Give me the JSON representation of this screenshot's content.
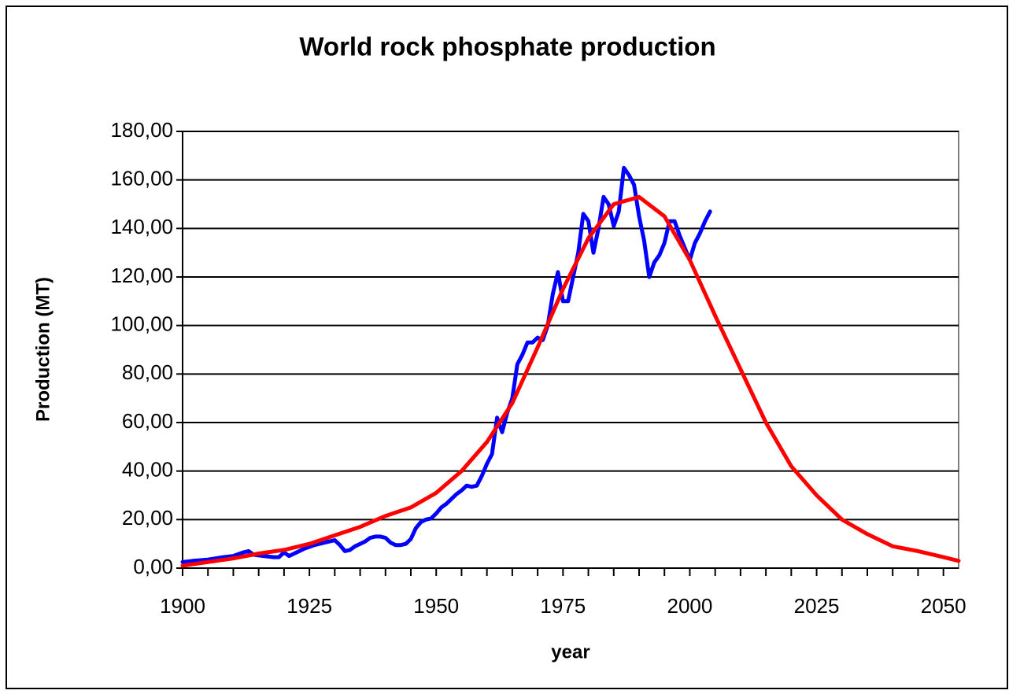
{
  "chart_data": {
    "type": "line",
    "title": "World rock phosphate production",
    "x_label": "year",
    "y_label": "Production (MT)",
    "xlim": [
      1900,
      2053
    ],
    "xticks": [
      1900,
      1925,
      1950,
      1975,
      2000,
      2025,
      2050
    ],
    "xminorticks": [
      1905,
      1910,
      1915,
      1920,
      1930,
      1935,
      1940,
      1945,
      1955,
      1960,
      1965,
      1970,
      1980,
      1985,
      1990,
      1995,
      2005,
      2010,
      2015,
      2020,
      2030,
      2035,
      2040,
      2045
    ],
    "ylim": [
      0,
      180
    ],
    "yticks": [
      {
        "value": 0,
        "label": "0,00"
      },
      {
        "value": 20,
        "label": "20,00"
      },
      {
        "value": 40,
        "label": "40,00"
      },
      {
        "value": 60,
        "label": "60,00"
      },
      {
        "value": 80,
        "label": "80,00"
      },
      {
        "value": 100,
        "label": "100,00"
      },
      {
        "value": 120,
        "label": "120,00"
      },
      {
        "value": 140,
        "label": "140,00"
      },
      {
        "value": 160,
        "label": "160,00"
      },
      {
        "value": 180,
        "label": "180,00"
      }
    ],
    "grid": true,
    "series": [
      {
        "color": "#0000ff",
        "x": [
          1900,
          1902,
          1905,
          1908,
          1910,
          1912,
          1913,
          1914,
          1916,
          1918,
          1919,
          1920,
          1921,
          1922,
          1924,
          1926,
          1928,
          1929,
          1930,
          1931,
          1932,
          1933,
          1934,
          1935,
          1936,
          1937,
          1938,
          1939,
          1940,
          1941,
          1942,
          1943,
          1944,
          1945,
          1946,
          1947,
          1948,
          1949,
          1950,
          1951,
          1952,
          1953,
          1954,
          1955,
          1956,
          1957,
          1958,
          1959,
          1960,
          1961,
          1962,
          1963,
          1964,
          1965,
          1966,
          1967,
          1968,
          1969,
          1970,
          1971,
          1972,
          1973,
          1974,
          1975,
          1976,
          1977,
          1978,
          1979,
          1980,
          1981,
          1982,
          1983,
          1984,
          1985,
          1986,
          1987,
          1988,
          1989,
          1990,
          1991,
          1992,
          1993,
          1994,
          1995,
          1996,
          1997,
          1998,
          1999,
          2000,
          2001,
          2002,
          2003,
          2004
        ],
        "values": [
          2.5,
          3,
          3.5,
          4.5,
          5,
          6.5,
          7,
          5.5,
          5,
          4.5,
          4.5,
          6.5,
          5,
          6,
          8,
          9.5,
          10.5,
          11,
          11.5,
          9.5,
          7,
          7.5,
          9,
          10,
          11,
          12.5,
          13,
          13,
          12.5,
          10.5,
          9.5,
          9.5,
          10,
          12,
          16.5,
          19,
          20,
          20.5,
          22.5,
          25,
          26.5,
          28.5,
          30.5,
          32,
          34,
          33.5,
          34,
          38,
          43,
          47,
          62,
          56,
          64,
          70,
          84,
          88,
          93,
          93,
          95,
          94,
          100,
          113,
          122,
          110,
          110,
          120,
          130,
          146,
          143,
          130,
          140,
          153,
          150,
          141,
          147,
          165,
          162,
          158,
          145,
          135,
          120,
          126,
          129,
          134,
          143,
          143,
          137,
          132,
          127,
          134,
          138,
          143,
          147
        ]
      },
      {
        "color": "#ff0000",
        "x": [
          1900,
          1905,
          1910,
          1915,
          1920,
          1925,
          1930,
          1935,
          1940,
          1945,
          1950,
          1955,
          1960,
          1965,
          1970,
          1975,
          1980,
          1985,
          1990,
          1995,
          2000,
          2005,
          2010,
          2015,
          2020,
          2025,
          2030,
          2035,
          2040,
          2045,
          2050,
          2053
        ],
        "values": [
          1,
          2.5,
          4,
          6,
          7.5,
          10,
          13.5,
          17,
          21.5,
          25,
          31,
          40,
          52,
          68,
          91,
          115,
          136,
          150,
          153,
          145,
          127,
          104,
          82,
          60,
          42,
          30,
          20,
          14,
          9,
          7,
          4.5,
          3
        ]
      }
    ]
  }
}
